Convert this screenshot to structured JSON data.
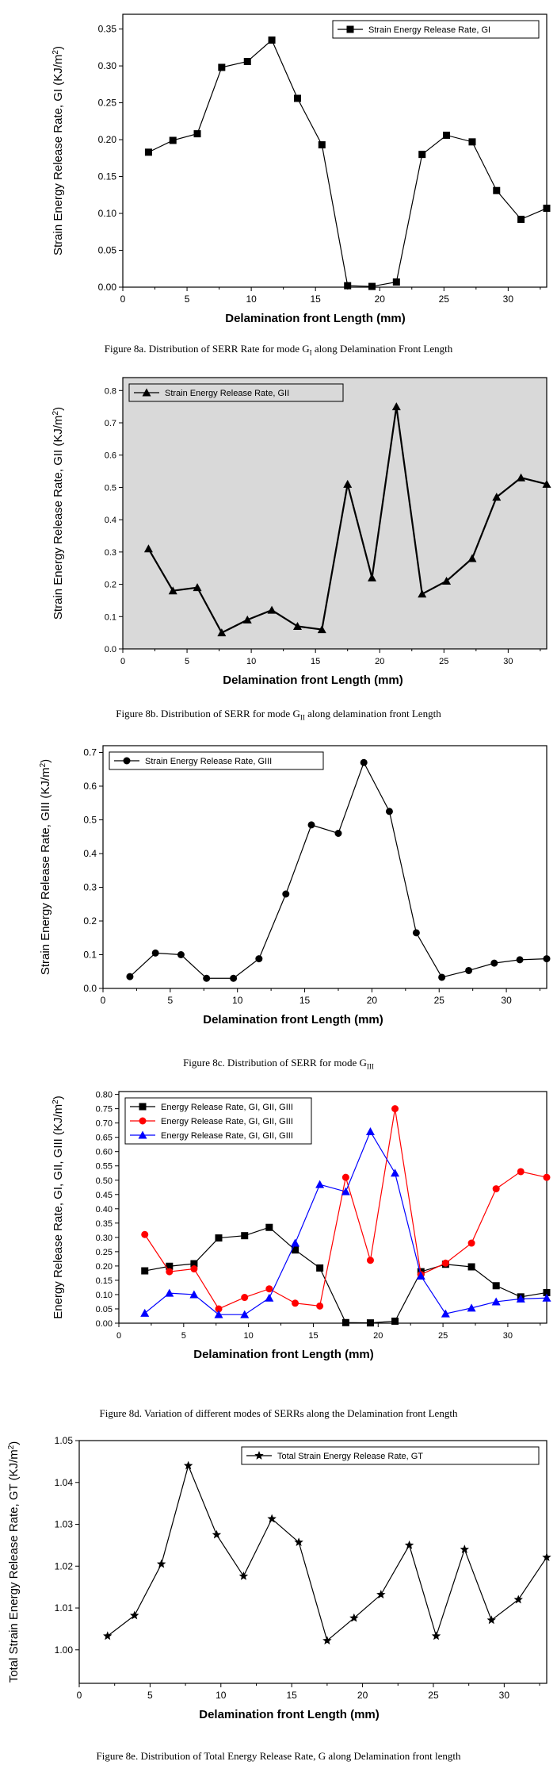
{
  "charts": [
    {
      "type": "line",
      "xlabel": "Delamination front Length (mm)",
      "ylabel": "Strain Energy Release Rate, GI (KJ/m2)",
      "ylabel_prefix": "Strain Energy Release Rate, GI (KJ/m",
      "ylabel_sup": "2",
      "ylabel_suffix": ")",
      "xlim": [
        0,
        33
      ],
      "ylim": [
        0,
        0.37
      ],
      "xticks": [
        0,
        5,
        10,
        15,
        20,
        25,
        30
      ],
      "yticks": [
        0.0,
        0.05,
        0.1,
        0.15,
        0.2,
        0.25,
        0.3,
        0.35
      ],
      "ytick_labels": [
        "0.00",
        "0.05",
        "0.10",
        "0.15",
        "0.20",
        "0.25",
        "0.30",
        "0.35"
      ],
      "legend_position": "top-right",
      "series": [
        {
          "name": "Strain Energy Release Rate, GI",
          "color": "#000000",
          "marker": "square",
          "x": [
            2,
            3.9,
            5.8,
            7.7,
            9.7,
            11.6,
            13.6,
            15.5,
            17.5,
            19.4,
            21.3,
            23.3,
            25.2,
            27.2,
            29.1,
            31,
            33
          ],
          "y": [
            0.183,
            0.199,
            0.208,
            0.298,
            0.306,
            0.335,
            0.256,
            0.193,
            0.002,
            0.001,
            0.007,
            0.18,
            0.206,
            0.197,
            0.131,
            0.092,
            0.107
          ]
        }
      ]
    },
    {
      "type": "line",
      "xlabel": "Delamination front Length (mm)",
      "ylabel": "Strain Energy Release Rate, GII (KJ/m2)",
      "ylabel_prefix": "Strain Energy Release Rate, GII (KJ/m",
      "ylabel_sup": "2",
      "ylabel_suffix": ")",
      "xlim": [
        0,
        33
      ],
      "ylim": [
        0,
        0.84
      ],
      "xticks": [
        0,
        5,
        10,
        15,
        20,
        25,
        30
      ],
      "yticks": [
        0.0,
        0.1,
        0.2,
        0.3,
        0.4,
        0.5,
        0.6,
        0.7,
        0.8
      ],
      "ytick_labels": [
        "0.0",
        "0.1",
        "0.2",
        "0.3",
        "0.4",
        "0.5",
        "0.6",
        "0.7",
        "0.8"
      ],
      "legend_position": "top-left",
      "series": [
        {
          "name": "Strain Energy Release Rate, GII",
          "color": "#000000",
          "marker": "triangle",
          "x": [
            2,
            3.9,
            5.8,
            7.7,
            9.7,
            11.6,
            13.6,
            15.5,
            17.5,
            19.4,
            21.3,
            23.3,
            25.2,
            27.2,
            29.1,
            31,
            33
          ],
          "y": [
            0.31,
            0.18,
            0.19,
            0.05,
            0.09,
            0.12,
            0.07,
            0.06,
            0.51,
            0.22,
            0.75,
            0.17,
            0.21,
            0.28,
            0.47,
            0.53,
            0.51
          ]
        }
      ]
    },
    {
      "type": "line",
      "xlabel": "Delamination front Length (mm)",
      "ylabel": "Strain Energy Release Rate, GIII (KJ/m2)",
      "ylabel_prefix": "Strain Energy Release Rate, GIII (KJ/m",
      "ylabel_sup": "2",
      "ylabel_suffix": ")",
      "xlim": [
        0,
        33
      ],
      "ylim": [
        0,
        0.72
      ],
      "xticks": [
        0,
        5,
        10,
        15,
        20,
        25,
        30
      ],
      "yticks": [
        0.0,
        0.1,
        0.2,
        0.3,
        0.4,
        0.5,
        0.6,
        0.7
      ],
      "ytick_labels": [
        "0.0",
        "0.1",
        "0.2",
        "0.3",
        "0.4",
        "0.5",
        "0.6",
        "0.7"
      ],
      "legend_position": "top-left",
      "series": [
        {
          "name": "Strain Energy Release Rate, GIII",
          "color": "#000000",
          "marker": "circle",
          "x": [
            2,
            3.9,
            5.8,
            7.7,
            9.7,
            11.6,
            13.6,
            15.5,
            17.5,
            19.4,
            21.3,
            23.3,
            25.2,
            27.2,
            29.1,
            31,
            33
          ],
          "y": [
            0.035,
            0.105,
            0.1,
            0.03,
            0.03,
            0.088,
            0.28,
            0.485,
            0.46,
            0.67,
            0.525,
            0.165,
            0.033,
            0.053,
            0.075,
            0.085,
            0.088
          ]
        }
      ]
    },
    {
      "type": "line",
      "xlabel": "Delamination front Length (mm)",
      "ylabel": "Energy Release Rate, GI, GII, GIII (KJ/m2)",
      "ylabel_prefix": "Energy Release Rate, GI, GII, GIII (KJ/m",
      "ylabel_sup": "2",
      "ylabel_suffix": ")",
      "xlim": [
        0,
        33
      ],
      "ylim": [
        0,
        0.81
      ],
      "xticks": [
        0,
        5,
        10,
        15,
        20,
        25,
        30
      ],
      "yticks": [
        0.0,
        0.05,
        0.1,
        0.15,
        0.2,
        0.25,
        0.3,
        0.35,
        0.4,
        0.45,
        0.5,
        0.55,
        0.6,
        0.65,
        0.7,
        0.75,
        0.8
      ],
      "ytick_labels": [
        "0.00",
        "0.05",
        "0.10",
        "0.15",
        "0.20",
        "0.25",
        "0.30",
        "0.35",
        "0.40",
        "0.45",
        "0.50",
        "0.55",
        "0.60",
        "0.65",
        "0.70",
        "0.75",
        "0.80"
      ],
      "legend_position": "top-left",
      "series": [
        {
          "name": "Energy Release Rate, GI, GII, GIII",
          "color": "#000000",
          "marker": "square",
          "x": [
            2,
            3.9,
            5.8,
            7.7,
            9.7,
            11.6,
            13.6,
            15.5,
            17.5,
            19.4,
            21.3,
            23.3,
            25.2,
            27.2,
            29.1,
            31,
            33
          ],
          "y": [
            0.183,
            0.199,
            0.208,
            0.298,
            0.306,
            0.335,
            0.256,
            0.193,
            0.002,
            0.001,
            0.007,
            0.18,
            0.206,
            0.197,
            0.131,
            0.092,
            0.107
          ]
        },
        {
          "name": "Energy Release Rate, GI, GII, GIII",
          "color": "#ff0000",
          "marker": "circle",
          "x": [
            2,
            3.9,
            5.8,
            7.7,
            9.7,
            11.6,
            13.6,
            15.5,
            17.5,
            19.4,
            21.3,
            23.3,
            25.2,
            27.2,
            29.1,
            31,
            33
          ],
          "y": [
            0.31,
            0.18,
            0.19,
            0.05,
            0.09,
            0.12,
            0.07,
            0.06,
            0.51,
            0.22,
            0.75,
            0.17,
            0.21,
            0.28,
            0.47,
            0.53,
            0.51
          ]
        },
        {
          "name": "Energy Release Rate, GI, GII, GIII",
          "color": "#0000ff",
          "marker": "triangle",
          "x": [
            2,
            3.9,
            5.8,
            7.7,
            9.7,
            11.6,
            13.6,
            15.5,
            17.5,
            19.4,
            21.3,
            23.3,
            25.2,
            27.2,
            29.1,
            31,
            33
          ],
          "y": [
            0.035,
            0.105,
            0.1,
            0.03,
            0.03,
            0.088,
            0.28,
            0.485,
            0.46,
            0.67,
            0.525,
            0.165,
            0.033,
            0.053,
            0.075,
            0.085,
            0.088
          ]
        }
      ]
    },
    {
      "type": "line",
      "xlabel": "Delamination front Length (mm)",
      "ylabel": "Total Strain Energy Release Rate, GT (KJ/m2)",
      "ylabel_prefix": "Total Strain Energy Release Rate, GT (KJ/m",
      "ylabel_sup": "2",
      "ylabel_suffix": ")",
      "xlim": [
        0,
        33
      ],
      "ylim": [
        0.992,
        1.05
      ],
      "xticks": [
        0,
        5,
        10,
        15,
        20,
        25,
        30
      ],
      "yticks": [
        1.0,
        1.01,
        1.02,
        1.03,
        1.04,
        1.05
      ],
      "ytick_labels": [
        "1.00",
        "1.01",
        "1.02",
        "1.03",
        "1.04",
        "1.05"
      ],
      "legend_position": "top-right",
      "series": [
        {
          "name": "Total Strain Energy Release Rate, GT",
          "color": "#000000",
          "marker": "star",
          "x": [
            2,
            3.9,
            5.8,
            7.7,
            9.7,
            11.6,
            13.6,
            15.5,
            17.5,
            19.4,
            21.3,
            23.3,
            25.2,
            27.2,
            29.1,
            31,
            33
          ],
          "y": [
            1.0033,
            1.0082,
            1.0205,
            1.044,
            1.0275,
            1.0176,
            1.0313,
            1.0257,
            1.0022,
            1.0076,
            1.0132,
            1.025,
            1.0033,
            1.024,
            1.0071,
            1.012,
            1.0221
          ]
        }
      ]
    }
  ],
  "captions": [
    {
      "prefix": "Figure 8a.   Distribution of SERR Rate for mode G",
      "sub": "I",
      "suffix": " along Delamination Front Length"
    },
    {
      "prefix": "Figure 8b.   Distribution of SERR for mode G",
      "sub": "II",
      "suffix": " along delamination front Length"
    },
    {
      "prefix": "Figure 8c.   Distribution of SERR for mode G",
      "sub": "III",
      "suffix": ""
    },
    {
      "prefix": "Figure 8d.   Variation of different modes of SERRs along the Delamination front Length",
      "sub": "",
      "suffix": ""
    },
    {
      "prefix": "Figure 8e.   Distribution of Total Energy Release Rate, G along Delamination front length",
      "sub": "",
      "suffix": ""
    }
  ]
}
